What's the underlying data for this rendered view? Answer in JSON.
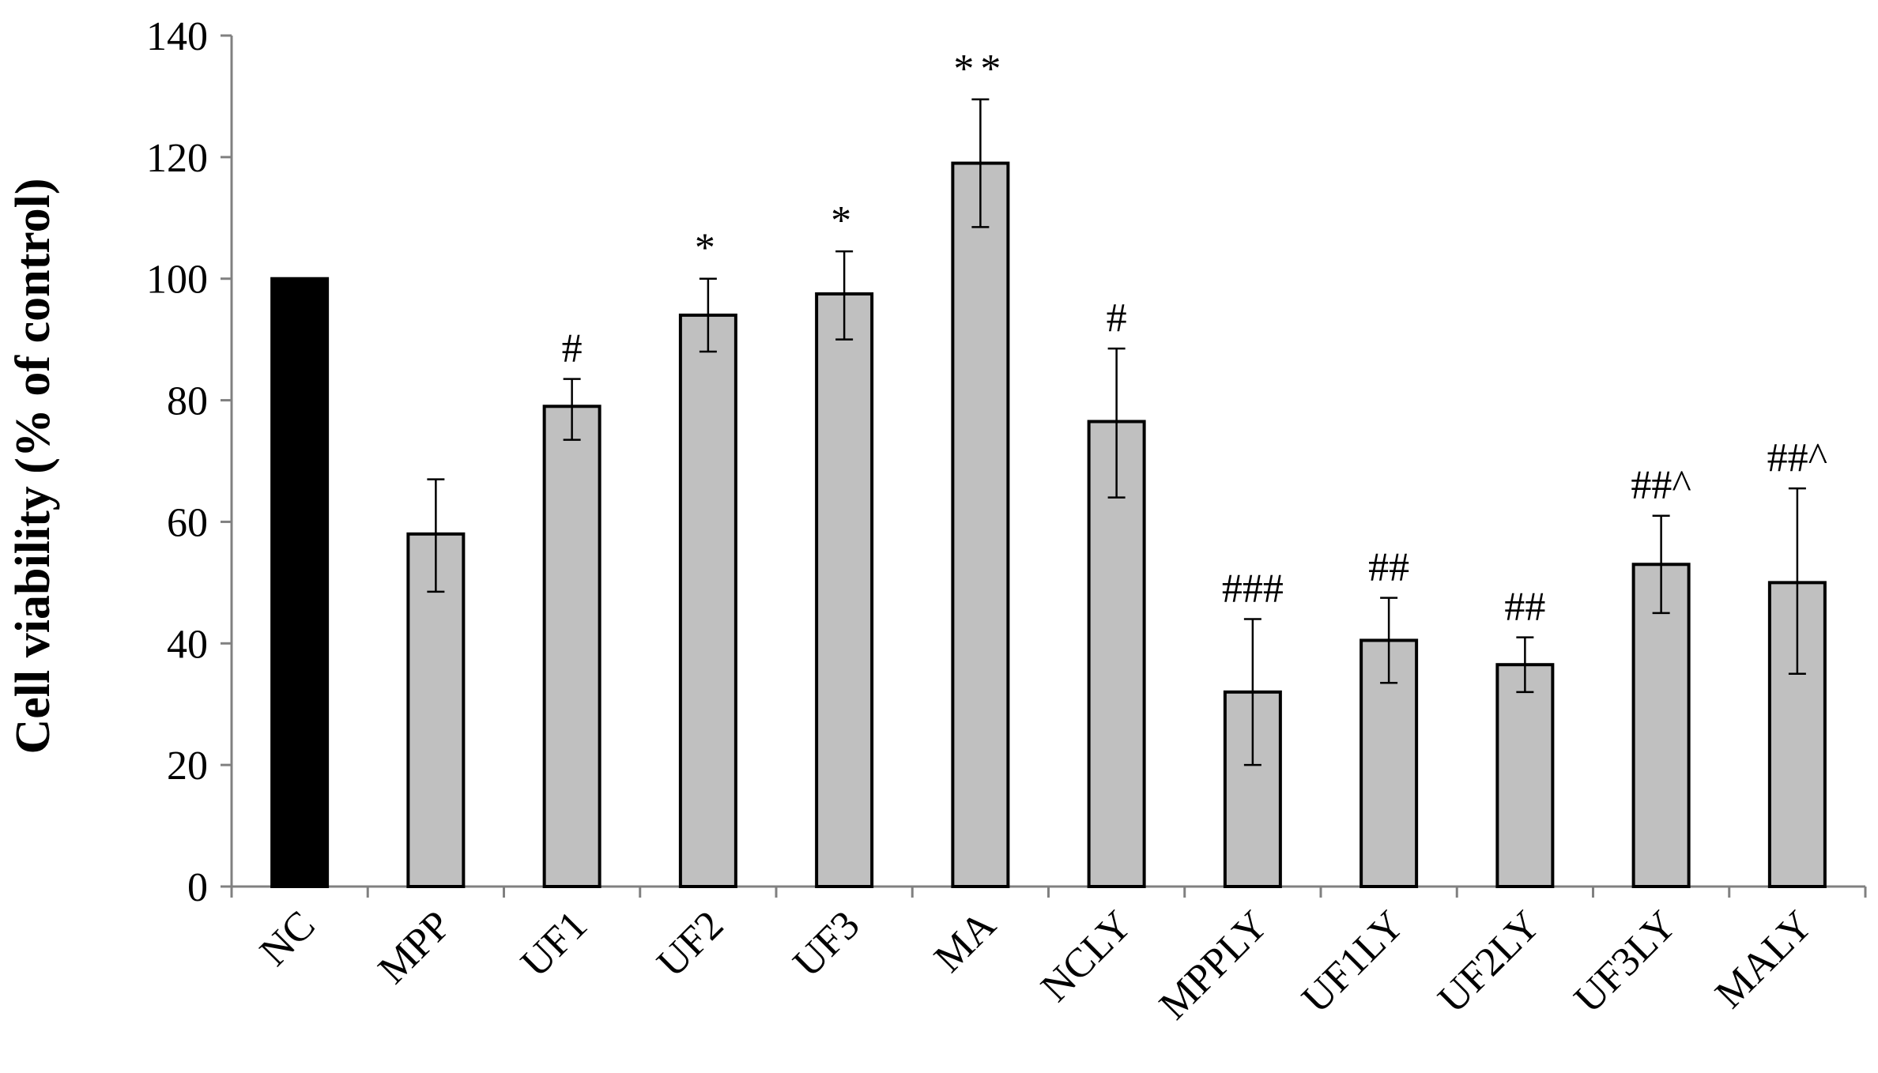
{
  "chart_data": {
    "type": "bar",
    "ylabel": "Cell viability (% of control)",
    "ylim": [
      0,
      140
    ],
    "yticks": [
      0,
      20,
      40,
      60,
      80,
      100,
      120,
      140
    ],
    "grid": false,
    "legend": "none",
    "categories": [
      "NC",
      "MPP",
      "UF1",
      "UF2",
      "UF3",
      "MA",
      "NCLY",
      "MPPLY",
      "UF1LY",
      "UF2LY",
      "UF3LY",
      "MALY"
    ],
    "values": [
      100,
      58,
      79,
      94,
      97.5,
      119,
      76.5,
      32,
      40.5,
      36.5,
      53,
      50
    ],
    "error_lower": [
      100,
      48.5,
      73.5,
      88,
      90,
      108.5,
      64,
      20,
      33.5,
      32,
      45,
      35
    ],
    "error_upper": [
      100,
      67,
      83.5,
      100,
      104.5,
      129.5,
      88.5,
      44,
      47.5,
      41,
      61,
      65.5
    ],
    "annotations": [
      "",
      "",
      "#",
      "*",
      "*",
      "**",
      "#",
      "###",
      "##",
      "##",
      "##^",
      "##^"
    ],
    "colors": [
      "#000000",
      "#c0c0c0",
      "#c0c0c0",
      "#c0c0c0",
      "#c0c0c0",
      "#c0c0c0",
      "#c0c0c0",
      "#c0c0c0",
      "#c0c0c0",
      "#c0c0c0",
      "#c0c0c0",
      "#c0c0c0"
    ]
  }
}
